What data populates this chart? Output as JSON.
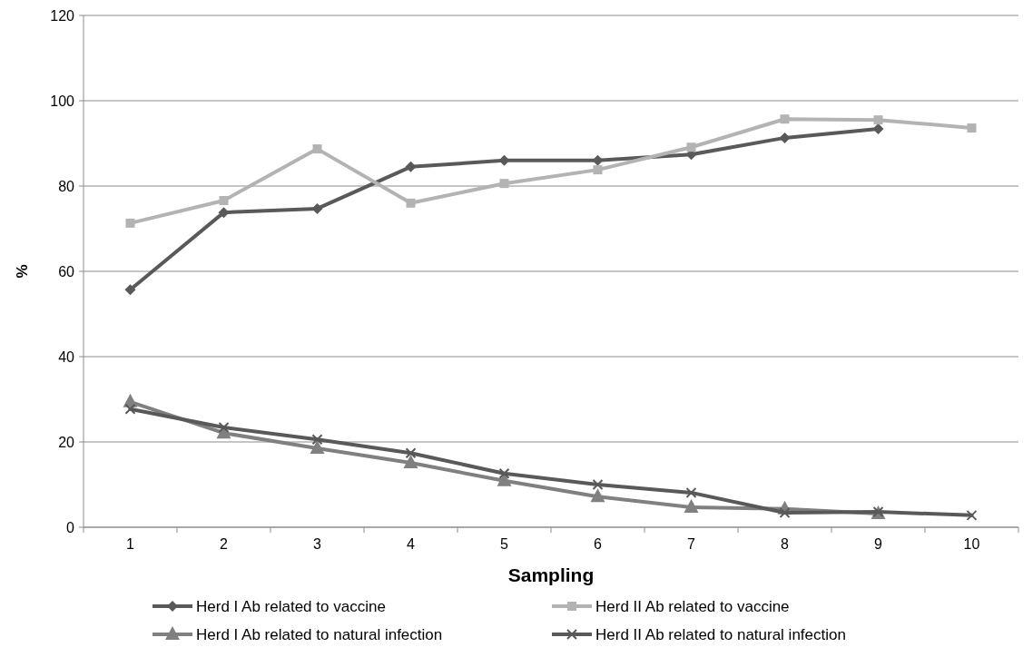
{
  "chart_data": {
    "type": "line",
    "xlabel": "Sampling",
    "ylabel": "%",
    "categories": [
      "1",
      "2",
      "3",
      "4",
      "5",
      "6",
      "7",
      "8",
      "9",
      "10"
    ],
    "ylim": [
      0,
      120
    ],
    "yticks": [
      0,
      20,
      40,
      60,
      80,
      100,
      120
    ],
    "grid": "y",
    "legend": "bottom",
    "line_style": "solid",
    "series": [
      {
        "name": "Herd I Ab related to vaccine",
        "color": "#595959",
        "marker": "diamond",
        "values": [
          55.7,
          73.8,
          74.7,
          84.5,
          86,
          86,
          87.4,
          91.3,
          93.4,
          null
        ]
      },
      {
        "name": "Herd II Ab related to vaccine",
        "color": "#b3b3b3",
        "marker": "square",
        "values": [
          71.3,
          76.6,
          88.7,
          76,
          80.6,
          83.8,
          89.1,
          95.7,
          95.5,
          93.6
        ]
      },
      {
        "name": "Herd I Ab related to natural infection",
        "color": "#808080",
        "marker": "triangle",
        "values": [
          29.4,
          22.1,
          18.5,
          15.1,
          10.9,
          7.2,
          4.7,
          4.3,
          3.2,
          null
        ]
      },
      {
        "name": "Herd II Ab related to natural infection",
        "color": "#595959",
        "marker": "cross",
        "values": [
          27.7,
          23.4,
          20.6,
          17.4,
          12.6,
          10,
          8.1,
          3.4,
          3.6,
          2.8
        ]
      }
    ]
  }
}
